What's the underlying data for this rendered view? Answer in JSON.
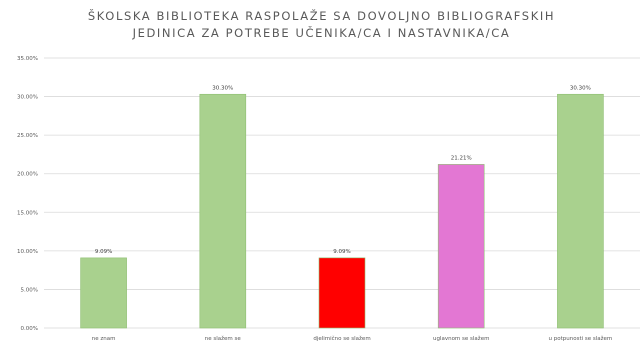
{
  "chart_data": {
    "type": "bar",
    "title_lines": [
      "ŠKOLSKA BIBLIOTEKA  RASPOLAŽE SA DOVOLJNO BIBLIOGRAFSKIH",
      "JEDINICA ZA POTREBE UČENIKA/CA I NASTAVNIKA/CA"
    ],
    "categories": [
      "ne znam",
      "ne slažem se",
      "djelimično se slažem",
      "uglavnom se slažem",
      "u potpunosti se slažem"
    ],
    "values": [
      9.09,
      30.3,
      9.09,
      21.21,
      30.3
    ],
    "data_labels": [
      "9.09%",
      "30.30%",
      "9.09%",
      "21.21%",
      "30.30%"
    ],
    "bar_colors": [
      "#a9d18e",
      "#a9d18e",
      "#ff0000",
      "#e377d3",
      "#a9d18e"
    ],
    "bar_stroke": "#8fbf72",
    "ylim": [
      0,
      35
    ],
    "yticks": [
      0,
      5,
      10,
      15,
      20,
      25,
      30,
      35
    ],
    "ytick_labels": [
      "0.00%",
      "5.00%",
      "10.00%",
      "15.00%",
      "20.00%",
      "25.00%",
      "30.00%",
      "35.00%"
    ],
    "grid": true,
    "grid_color": "#d9d9d9",
    "xlabel": "",
    "ylabel": ""
  }
}
